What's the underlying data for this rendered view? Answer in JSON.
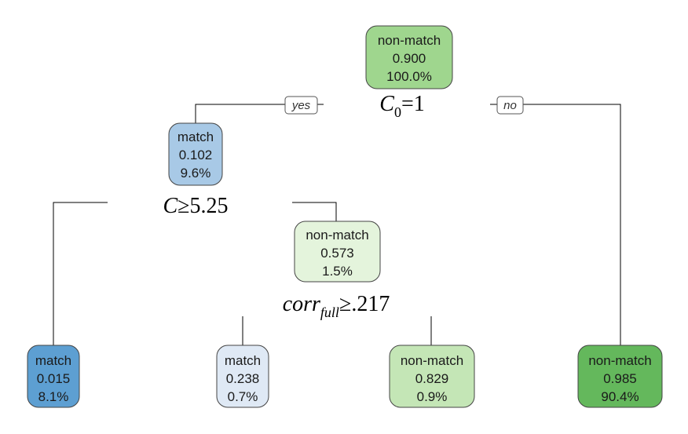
{
  "tree": {
    "nodes": {
      "root": {
        "cls": "non-match",
        "prob": "0.900",
        "pct": "100.0%",
        "color": "#9fd68e"
      },
      "n2": {
        "cls": "match",
        "prob": "0.102",
        "pct": "9.6%",
        "color": "#a8c9e6"
      },
      "n3": {
        "cls": "non-match",
        "prob": "0.573",
        "pct": "1.5%",
        "color": "#e4f4dc"
      },
      "leaf1": {
        "cls": "match",
        "prob": "0.015",
        "pct": "8.1%",
        "color": "#5d9fd2"
      },
      "leaf2": {
        "cls": "match",
        "prob": "0.238",
        "pct": "0.7%",
        "color": "#dfe9f5"
      },
      "leaf3": {
        "cls": "non-match",
        "prob": "0.829",
        "pct": "0.9%",
        "color": "#c4e6b6"
      },
      "leaf4": {
        "cls": "non-match",
        "prob": "0.985",
        "pct": "90.4%",
        "color": "#64b85c"
      }
    },
    "splits": {
      "s1": {
        "var": "C",
        "sub": "0",
        "op": "=",
        "val": "1"
      },
      "s2": {
        "var": "C",
        "sub": "",
        "op": "≥",
        "val": "5.25"
      },
      "s3": {
        "var": "corr",
        "sub": "full",
        "op": "≥",
        "val": ".217"
      }
    },
    "edge_tags": {
      "yes": "yes",
      "no": "no"
    }
  }
}
